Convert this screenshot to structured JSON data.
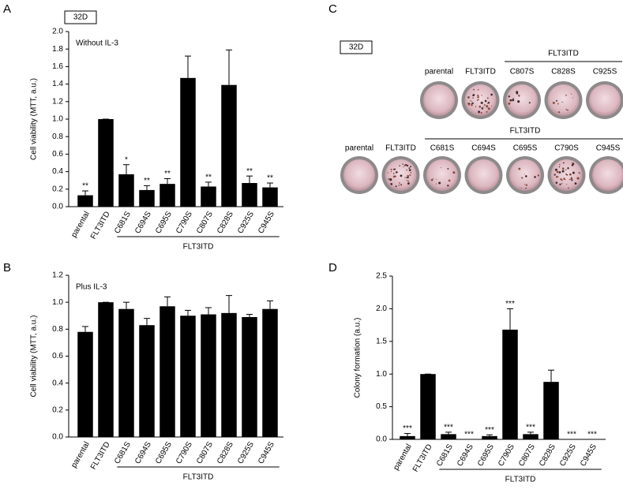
{
  "figure": {
    "panel_labels": [
      "A",
      "B",
      "C",
      "D"
    ],
    "badges": [
      "32D",
      "32D"
    ],
    "plates": [
      {
        "labels": [
          "parental",
          "FLT3ITD",
          "C807S",
          "C828S",
          "C925S"
        ],
        "group": {
          "name": "FLT3ITD",
          "members": [
            "C807S",
            "C828S",
            "C925S"
          ]
        }
      },
      {
        "labels": [
          "parental",
          "FLT3ITD",
          "C681S",
          "C694S",
          "C695S",
          "C790S",
          "C945S"
        ],
        "group": {
          "name": "FLT3ITD",
          "members": [
            "C681S",
            "C694S",
            "C695S",
            "C790S",
            "C945S"
          ]
        }
      }
    ]
  },
  "chart_data": [
    {
      "type": "bar",
      "note": "Without IL-3",
      "y_label": "Cell viability (MTT, a.u.)",
      "categories": [
        "parental",
        "FLT3ITD",
        "C681S",
        "C694S",
        "C695S",
        "C790S",
        "C807S",
        "C828S",
        "C925S",
        "C945S"
      ],
      "values": [
        0.13,
        1.0,
        0.37,
        0.19,
        0.26,
        1.47,
        0.23,
        1.39,
        0.27,
        0.22
      ],
      "errors": [
        0.05,
        0,
        0.11,
        0.05,
        0.06,
        0.25,
        0.05,
        0.4,
        0.08,
        0.05
      ],
      "significance": [
        "**",
        null,
        "*",
        "**",
        "**",
        null,
        "**",
        null,
        "**",
        "**"
      ],
      "groups": [
        {
          "name": "FLT3ITD",
          "members": [
            "C681S",
            "C694S",
            "C695S",
            "C790S",
            "C807S",
            "C828S",
            "C925S",
            "C945S"
          ]
        }
      ],
      "color": "#000000",
      "ylim": [
        0,
        2.0
      ],
      "yticks": [
        {
          "value": 0,
          "label": "0.0"
        },
        0.2,
        0.4,
        0.6,
        0.8,
        {
          "value": 1,
          "label": "1.0"
        },
        1.2,
        1.4,
        1.6,
        1.8,
        {
          "value": 2,
          "label": "2.0"
        }
      ]
    },
    {
      "type": "bar",
      "note": "Plus IL-3",
      "y_label": "Cell viability (MTT, a.u.)",
      "categories": [
        "parental",
        "FLT3ITD",
        "C681S",
        "C694S",
        "C695S",
        "C790S",
        "C807S",
        "C828S",
        "C925S",
        "C945S"
      ],
      "values": [
        0.78,
        1.0,
        0.95,
        0.83,
        0.97,
        0.9,
        0.91,
        0.92,
        0.89,
        0.95
      ],
      "errors": [
        0.04,
        0,
        0.05,
        0.05,
        0.07,
        0.04,
        0.05,
        0.13,
        0.02,
        0.06
      ],
      "groups": [
        {
          "name": "FLT3ITD",
          "members": [
            "C681S",
            "C694S",
            "C695S",
            "C790S",
            "C807S",
            "C828S",
            "C925S",
            "C945S"
          ]
        }
      ],
      "color": "#000000",
      "ylim": [
        0,
        1.2
      ],
      "yticks": [
        {
          "value": 0,
          "label": "0.0"
        },
        0.2,
        0.4,
        0.6,
        0.8,
        {
          "value": 1,
          "label": "1.0"
        },
        1.2
      ]
    },
    {
      "type": "bar",
      "y_label": "Colony formation (a.u.)",
      "categories": [
        "parental",
        "FLT3ITD",
        "C681S",
        "C694S",
        "C695S",
        "C790S",
        "C807S",
        "C828S",
        "C925S",
        "C945S"
      ],
      "values": [
        0.05,
        1.0,
        0.08,
        0.0,
        0.05,
        1.68,
        0.08,
        0.88,
        0.0,
        0.0
      ],
      "errors": [
        0.04,
        0,
        0.03,
        0,
        0.02,
        0.32,
        0.03,
        0.18,
        0,
        0
      ],
      "significance": [
        "***",
        null,
        "***",
        "***",
        "***",
        "***",
        "***",
        null,
        "***",
        "***"
      ],
      "groups": [
        {
          "name": "FLT3ITD",
          "members": [
            "C681S",
            "C694S",
            "C695S",
            "C790S",
            "C807S",
            "C828S",
            "C925S",
            "C945S"
          ]
        }
      ],
      "color": "#000000",
      "ylim": [
        0,
        2.5
      ],
      "yticks": [
        {
          "value": 0,
          "label": "0.0"
        },
        0.5,
        {
          "value": 1,
          "label": "1.0"
        },
        1.5,
        {
          "value": 2,
          "label": "2.0"
        },
        2.5
      ]
    }
  ]
}
